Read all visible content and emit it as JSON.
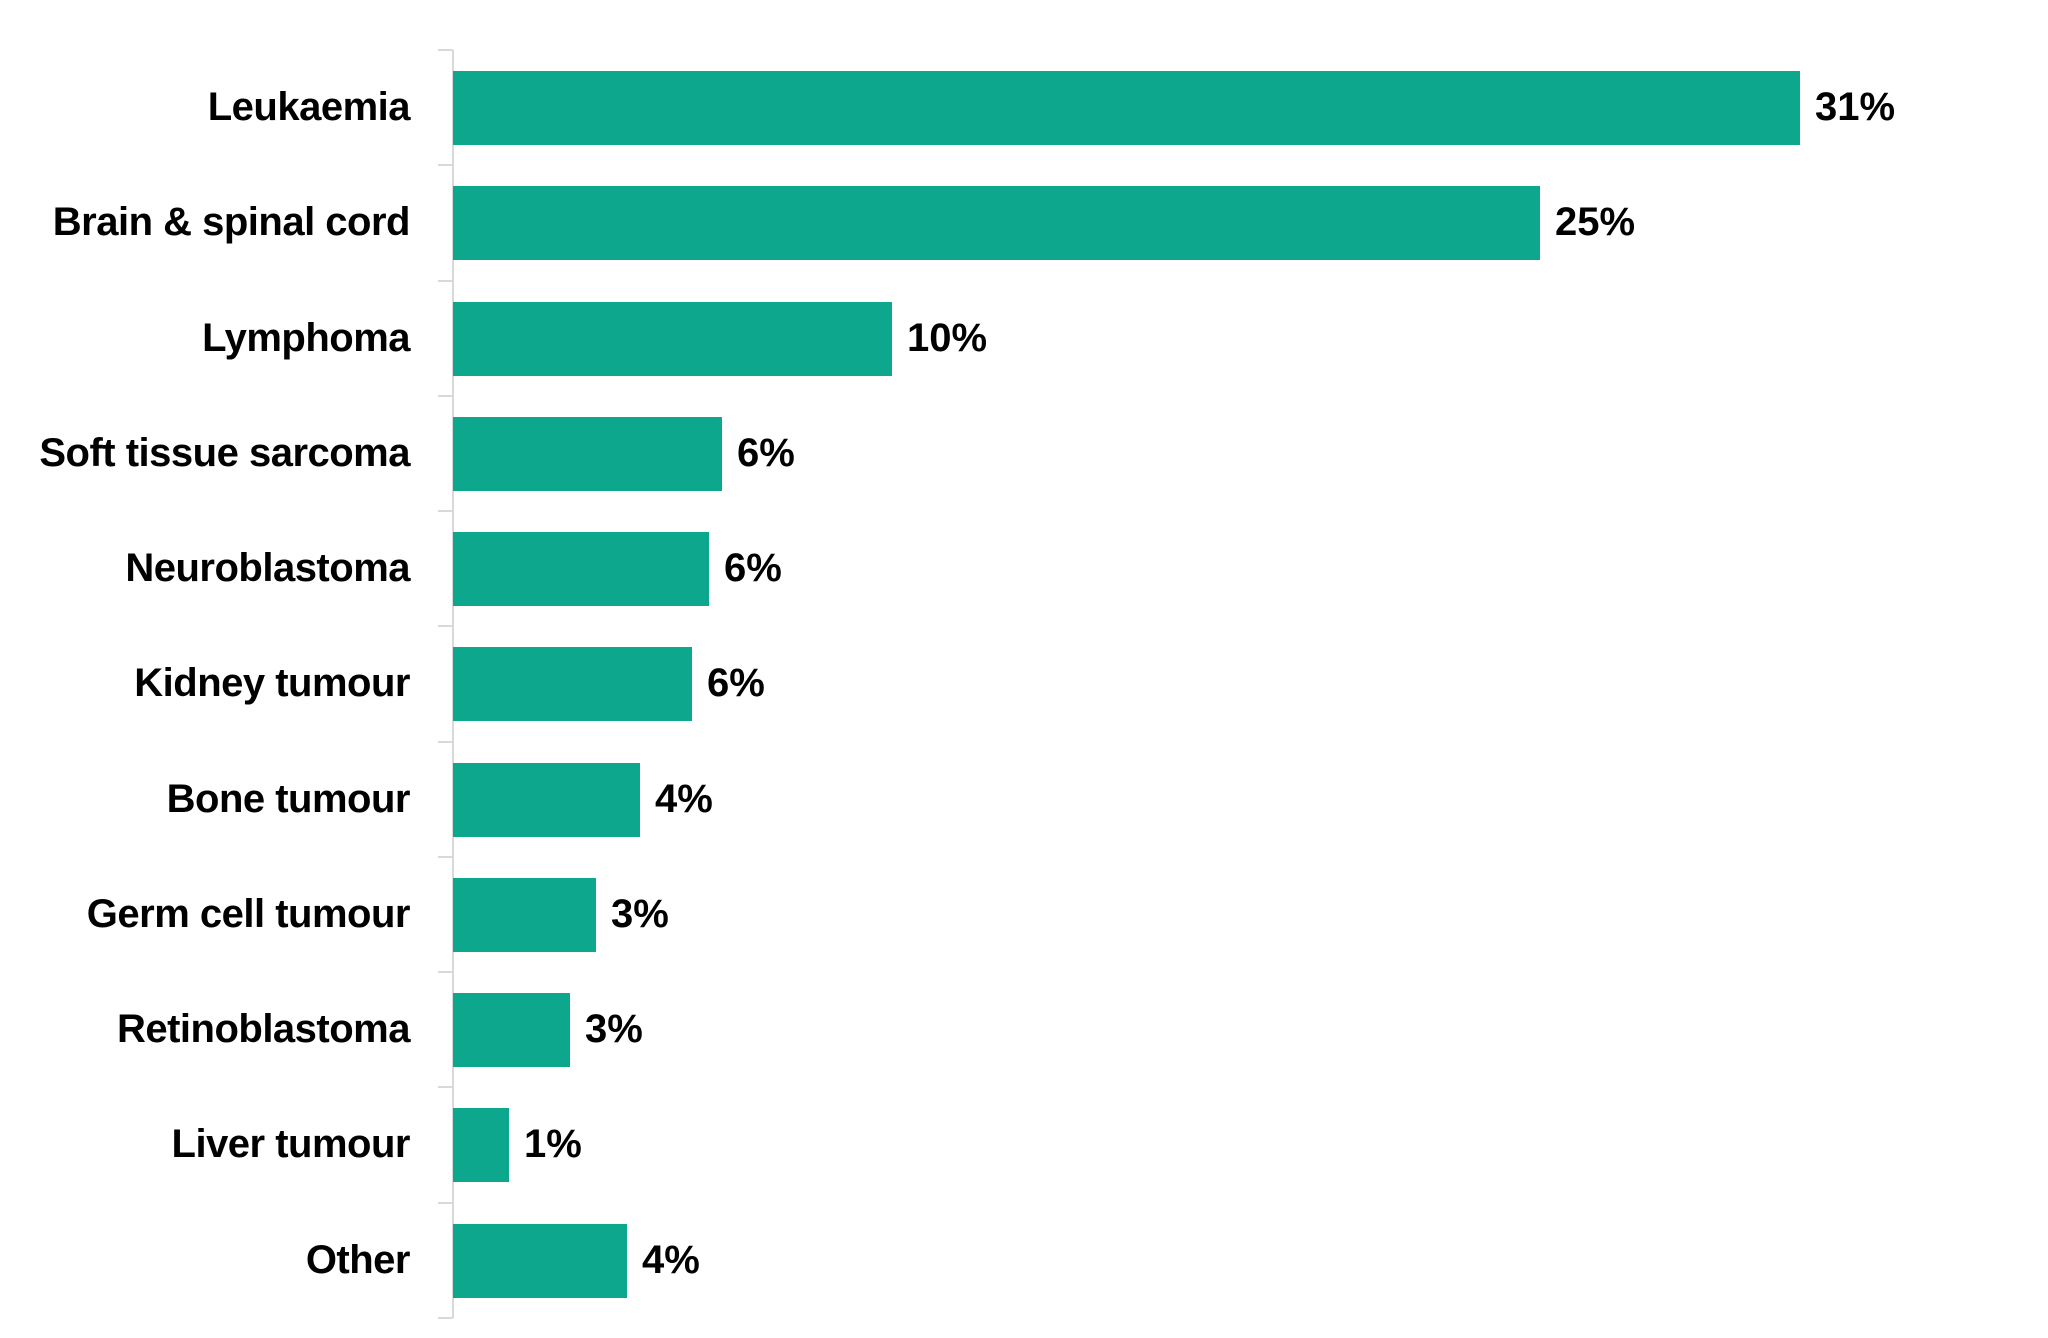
{
  "chart_data": {
    "type": "bar",
    "orientation": "horizontal",
    "title": "",
    "categories": [
      "Leukaemia",
      "Brain & spinal cord",
      "Lymphoma",
      "Soft tissue sarcoma",
      "Neuroblastoma",
      "Kidney tumour",
      "Bone tumour",
      "Germ cell tumour",
      "Retinoblastoma",
      "Liver tumour",
      "Other"
    ],
    "values": [
      31,
      25,
      10,
      6,
      6,
      6,
      4,
      3,
      3,
      1,
      4
    ],
    "value_labels": [
      "31%",
      "25%",
      "10%",
      "6%",
      "6%",
      "6%",
      "4%",
      "3%",
      "3%",
      "1%",
      "4%"
    ],
    "values_precise": [
      31.0,
      25.0,
      10.1,
      6.2,
      5.9,
      5.5,
      4.3,
      3.3,
      2.7,
      1.3,
      4.0
    ],
    "xlabel": "",
    "ylabel": "",
    "xlim": [
      0,
      36.7
    ],
    "grid": false,
    "legend": false,
    "data_labels": true,
    "bar_color": "#0CA78C",
    "axis_color": "#D9D9D9",
    "text_color": "#000000",
    "background_color": "#FFFFFF"
  }
}
